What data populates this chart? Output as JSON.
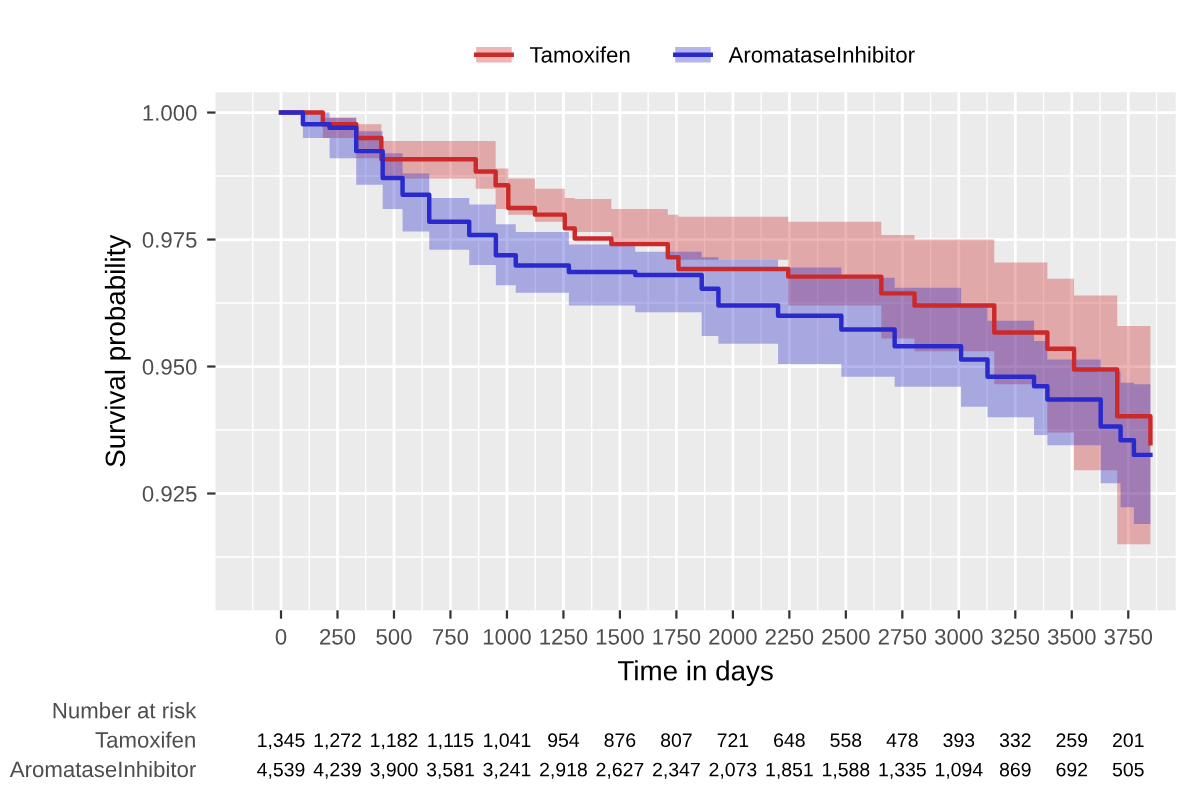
{
  "chart_data": [
    {
      "type": "step",
      "xlabel": "Time in days",
      "ylabel": "Survival probability",
      "xlim": [
        -290,
        3960
      ],
      "ylim": [
        0.902,
        1.004
      ],
      "xticks": [
        0,
        250,
        500,
        750,
        1000,
        1250,
        1500,
        1750,
        2000,
        2250,
        2500,
        2750,
        3000,
        3250,
        3500,
        3750
      ],
      "yticks": [
        {
          "value": 0.925,
          "label": "0.925"
        },
        {
          "value": 0.95,
          "label": "0.950"
        },
        {
          "value": 0.975,
          "label": "0.975"
        },
        {
          "value": 1.0,
          "label": "1.000"
        }
      ],
      "grid": true,
      "legend": "top",
      "series": [
        {
          "name": "Tamoxifen",
          "color": "#cc2a2a",
          "x": [
            0,
            185,
            333,
            444,
            818,
            862,
            950,
            1006,
            1124,
            1256,
            1300,
            1462,
            1712,
            1759,
            2245,
            2657,
            2804,
            3157,
            3392,
            3510,
            3701,
            3848
          ],
          "values": [
            1.0,
            0.9977,
            0.995,
            0.9908,
            0.9908,
            0.9884,
            0.9857,
            0.9812,
            0.9799,
            0.9772,
            0.9752,
            0.9741,
            0.9715,
            0.9692,
            0.9677,
            0.9644,
            0.962,
            0.9567,
            0.9535,
            0.9494,
            0.9402,
            0.9349
          ],
          "upper": [
            1.0,
            0.999,
            0.9977,
            0.9944,
            0.9944,
            0.9944,
            0.989,
            0.987,
            0.985,
            0.9832,
            0.983,
            0.981,
            0.9799,
            0.9795,
            0.9785,
            0.9759,
            0.975,
            0.9705,
            0.9673,
            0.964,
            0.958,
            0.9547
          ],
          "lower": [
            1.0,
            0.995,
            0.991,
            0.987,
            0.987,
            0.985,
            0.981,
            0.9799,
            0.9785,
            0.977,
            0.9765,
            0.9745,
            0.972,
            0.971,
            0.962,
            0.9555,
            0.953,
            0.9465,
            0.937,
            0.9296,
            0.915,
            0.9066
          ]
        },
        {
          "name": "AromataseInhibitor",
          "color": "#2a2acc",
          "x": [
            0,
            97,
            215,
            333,
            450,
            538,
            656,
            833,
            951,
            1039,
            1274,
            1568,
            1862,
            1936,
            2200,
            2480,
            2716,
            3010,
            3127,
            3333,
            3392,
            3628,
            3716,
            3775,
            3848
          ],
          "values": [
            1.0,
            0.9977,
            0.997,
            0.9924,
            0.9871,
            0.9838,
            0.9785,
            0.9759,
            0.9719,
            0.9699,
            0.9686,
            0.968,
            0.9653,
            0.962,
            0.96,
            0.9573,
            0.954,
            0.9514,
            0.948,
            0.9461,
            0.9435,
            0.9382,
            0.9355,
            0.9326,
            0.9326
          ],
          "upper": [
            1.0,
            1.0,
            0.999,
            0.9963,
            0.992,
            0.988,
            0.9832,
            0.9819,
            0.978,
            0.9765,
            0.974,
            0.9726,
            0.9715,
            0.971,
            0.9695,
            0.9675,
            0.9655,
            0.962,
            0.959,
            0.955,
            0.9514,
            0.949,
            0.9468,
            0.9465,
            0.946
          ],
          "lower": [
            1.0,
            0.995,
            0.991,
            0.9858,
            0.981,
            0.9766,
            0.973,
            0.97,
            0.966,
            0.9645,
            0.962,
            0.9607,
            0.956,
            0.9545,
            0.9505,
            0.948,
            0.946,
            0.9421,
            0.94,
            0.9365,
            0.9345,
            0.927,
            0.9223,
            0.919,
            0.915
          ]
        }
      ]
    },
    {
      "type": "other",
      "title": "Number at risk",
      "y_categories": [
        "Tamoxifen",
        "AromataseInhibitor"
      ],
      "cell_labels": [
        [
          "1,345",
          "1,272",
          "1,182",
          "1,115",
          "1,041",
          "954",
          "876",
          "807",
          "721",
          "648",
          "558",
          "478",
          "393",
          "332",
          "259",
          "201"
        ],
        [
          "4,539",
          "4,239",
          "3,900",
          "3,581",
          "3,241",
          "2,918",
          "2,627",
          "2,347",
          "2,073",
          "1,851",
          "1,588",
          "1,335",
          "1,094",
          "869",
          "692",
          "505"
        ]
      ]
    }
  ]
}
